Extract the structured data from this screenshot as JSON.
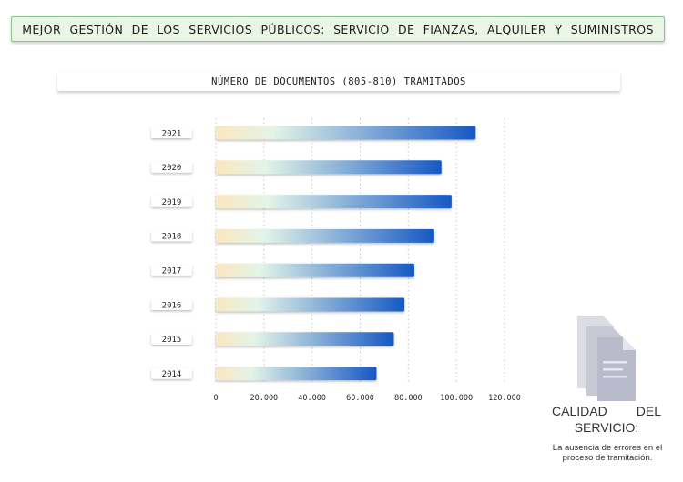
{
  "header": {
    "text": "MEJOR GESTIÓN DE LOS SERVICIOS PÚBLICOS:  SERVICIO DE FIANZAS, ALQUILER Y SUMINISTROS"
  },
  "quality": {
    "title_line1": "CALIDAD DEL",
    "title_line2": "SERVICIO:",
    "description": "La ausencia de errores en el proceso de tramitación.",
    "icon": "document-stack-icon"
  },
  "colors": {
    "bar_start": "#fbe7bf",
    "bar_mid": "#e3f4e8",
    "bar_end": "#1558c4",
    "header_bg": "#e9f6e6",
    "header_border": "#86c78a"
  },
  "chart_data": {
    "type": "bar",
    "orientation": "horizontal",
    "title": "NÚMERO DE DOCUMENTOS (805-810) TRAMITADOS",
    "categories": [
      "2021",
      "2020",
      "2019",
      "2018",
      "2017",
      "2016",
      "2015",
      "2014"
    ],
    "values": [
      108000,
      93800,
      98000,
      90800,
      82500,
      78400,
      74000,
      66800
    ],
    "xlim": [
      0,
      120000
    ],
    "xticks": [
      0,
      20000,
      40000,
      60000,
      80000,
      100000,
      120000
    ],
    "xtick_labels": [
      "0",
      "20.000",
      "40.000",
      "60.000",
      "80.000",
      "100.000",
      "120.000"
    ],
    "xlabel": "",
    "ylabel": "",
    "grid": "vertical-dotted",
    "legend": "none"
  }
}
